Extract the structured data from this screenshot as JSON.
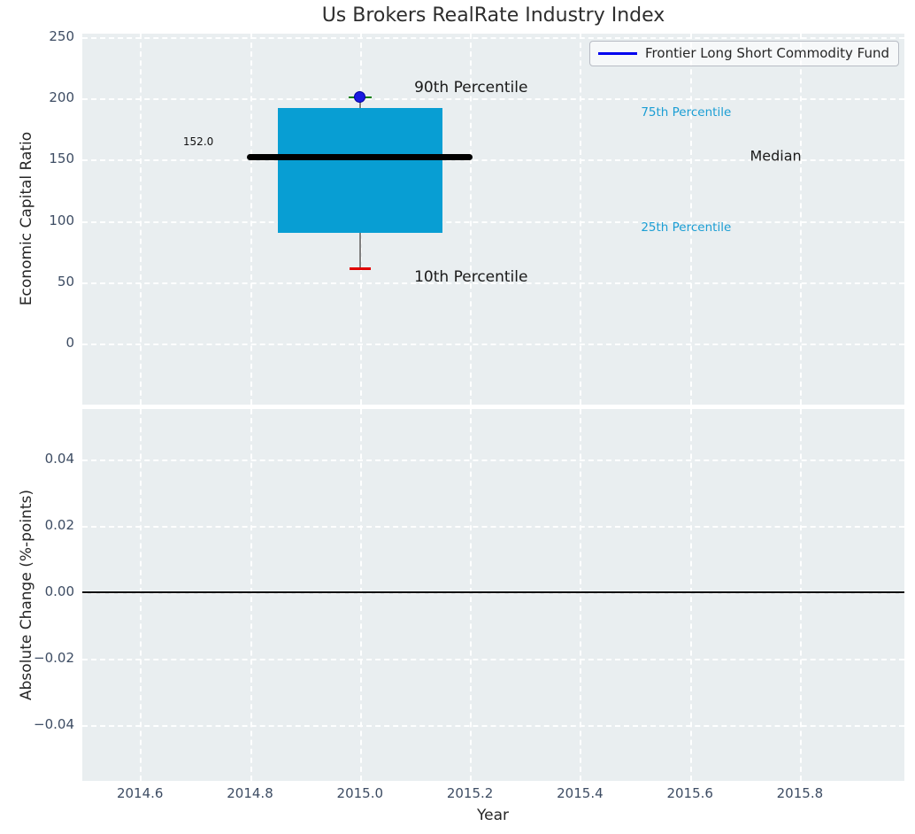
{
  "title": "Us Brokers RealRate Industry Index",
  "legend": {
    "label": "Frontier Long Short Commodity Fund"
  },
  "colors": {
    "plot_bg": "#e9eef0",
    "grid": "rgba(255,255,255,0.95)",
    "box_fill": "#089ed3",
    "median_line": "#000000",
    "whisker": "#808080",
    "cap_upper": "#007f00",
    "cap_lower": "#e00000",
    "marker": "#1a1ae0",
    "marker_edge": "#0000a0",
    "legend_line": "#0000ee",
    "tick_label": "#3d4c63",
    "text": "#262626",
    "annotation_cyan": "#1b9ed4",
    "zero_line": "#000000"
  },
  "chart_data": [
    {
      "type": "boxplot",
      "title": "Us Brokers RealRate Industry Index",
      "ylabel": "Economic Capital Ratio",
      "ylim": [
        -50,
        253
      ],
      "xlim": [
        2014.495,
        2015.99
      ],
      "yticks": [
        250,
        200,
        150,
        100,
        50,
        0
      ],
      "ytick_labels": [
        "250",
        "200",
        "150",
        "100",
        "50",
        "0"
      ],
      "xticks": [
        2014.6,
        2014.8,
        2015.0,
        2015.2,
        2015.4,
        2015.6,
        2015.8
      ],
      "grid": true,
      "legend_position": "upper right",
      "series_name": "Frontier Long Short Commodity Fund",
      "box": {
        "x_center": 2015.0,
        "x_left": 2014.85,
        "x_right": 2015.15,
        "p10": 61,
        "p25": 90,
        "median": 152.0,
        "p75": 192.5,
        "p90": 201,
        "median_line_x": [
          2014.795,
          2015.205
        ]
      },
      "annotations": [
        {
          "id": "annotation-90th-percentile",
          "text": "90th Percentile",
          "x": 2015.202,
          "y": 209,
          "color": "#1a1a1a",
          "size": 17
        },
        {
          "id": "annotation-10th-percentile",
          "text": "10th Percentile",
          "x": 2015.202,
          "y": 54,
          "color": "#1a1a1a",
          "size": 17
        },
        {
          "id": "annotation-median",
          "text": "Median",
          "x": 2015.756,
          "y": 153,
          "color": "#1a1a1a",
          "size": 16
        },
        {
          "id": "annotation-75th-percentile",
          "text": "75th Percentile",
          "x": 2015.593,
          "y": 189,
          "color": "#1b9ed4",
          "size": 13.5
        },
        {
          "id": "annotation-25th-percentile",
          "text": "25th Percentile",
          "x": 2015.593,
          "y": 95,
          "color": "#1b9ed4",
          "size": 13.5
        },
        {
          "id": "annotation-median-value",
          "text": "152.0",
          "x": 2014.706,
          "y": 165,
          "color": "#111111",
          "size": 12
        }
      ]
    },
    {
      "type": "line",
      "ylabel": "Absolute Change (%-points)",
      "xlabel": "Year",
      "ylim": [
        -0.0568,
        0.0552
      ],
      "xlim": [
        2014.495,
        2015.99
      ],
      "yticks": [
        0.04,
        0.02,
        0,
        -0.02,
        -0.04
      ],
      "ytick_labels": [
        "0.04",
        "0.02",
        "0.00",
        "−0.02",
        "−0.04"
      ],
      "xticks": [
        2014.6,
        2014.8,
        2015.0,
        2015.2,
        2015.4,
        2015.6,
        2015.8
      ],
      "xtick_labels": [
        "2014.6",
        "2014.8",
        "2015.0",
        "2015.2",
        "2015.4",
        "2015.6",
        "2015.8"
      ],
      "grid": true,
      "zero_line": 0.0
    }
  ]
}
